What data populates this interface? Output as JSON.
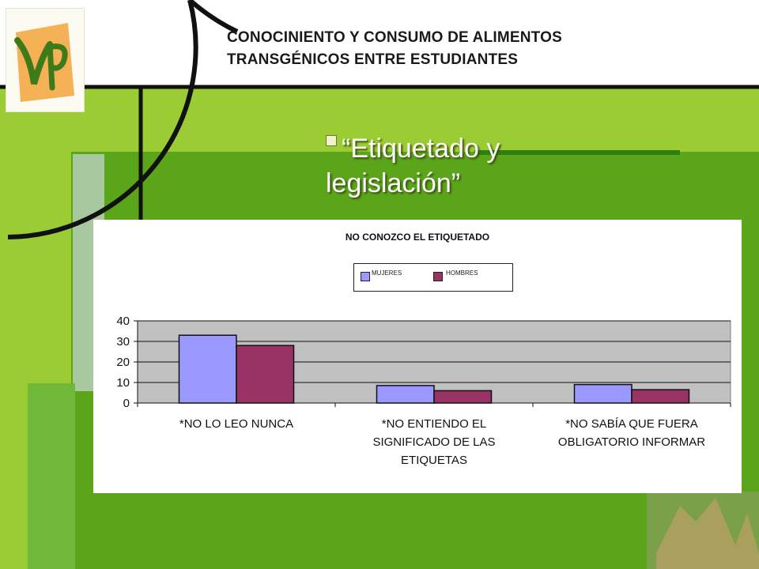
{
  "header": {
    "title_line1": "CONOCINIENTO Y CONSUMO DE ALIMENTOS",
    "title_line2": "TRANSGÉNICOS ENTRE ESTUDIANTES"
  },
  "bullet": {
    "line1": "“Etiquetado y",
    "line2": "legislación”"
  },
  "colors": {
    "series_mujeres": "#9999ff",
    "series_hombres": "#993366",
    "plot_area": "#c0c0c0",
    "slide_green": "#66aa22",
    "slide_lime": "#99cc33"
  },
  "chart_data": {
    "type": "bar",
    "title": "NO CONOZCO EL ETIQUETADO",
    "categories": [
      [
        "*NO LO LEO NUNCA"
      ],
      [
        "*NO ENTIENDO EL",
        "SIGNIFICADO DE LAS",
        "ETIQUETAS"
      ],
      [
        "*NO SABÍA QUE FUERA",
        "OBLIGATORIO INFORMAR"
      ]
    ],
    "series": [
      {
        "name": "MUJERES",
        "values": [
          33,
          8.5,
          9
        ]
      },
      {
        "name": "HOMBRES",
        "values": [
          28,
          6,
          6.5
        ]
      }
    ],
    "ylim": [
      0,
      40
    ],
    "yticks": [
      0,
      10,
      20,
      30,
      40
    ],
    "grid": true,
    "legend": "top-center"
  }
}
